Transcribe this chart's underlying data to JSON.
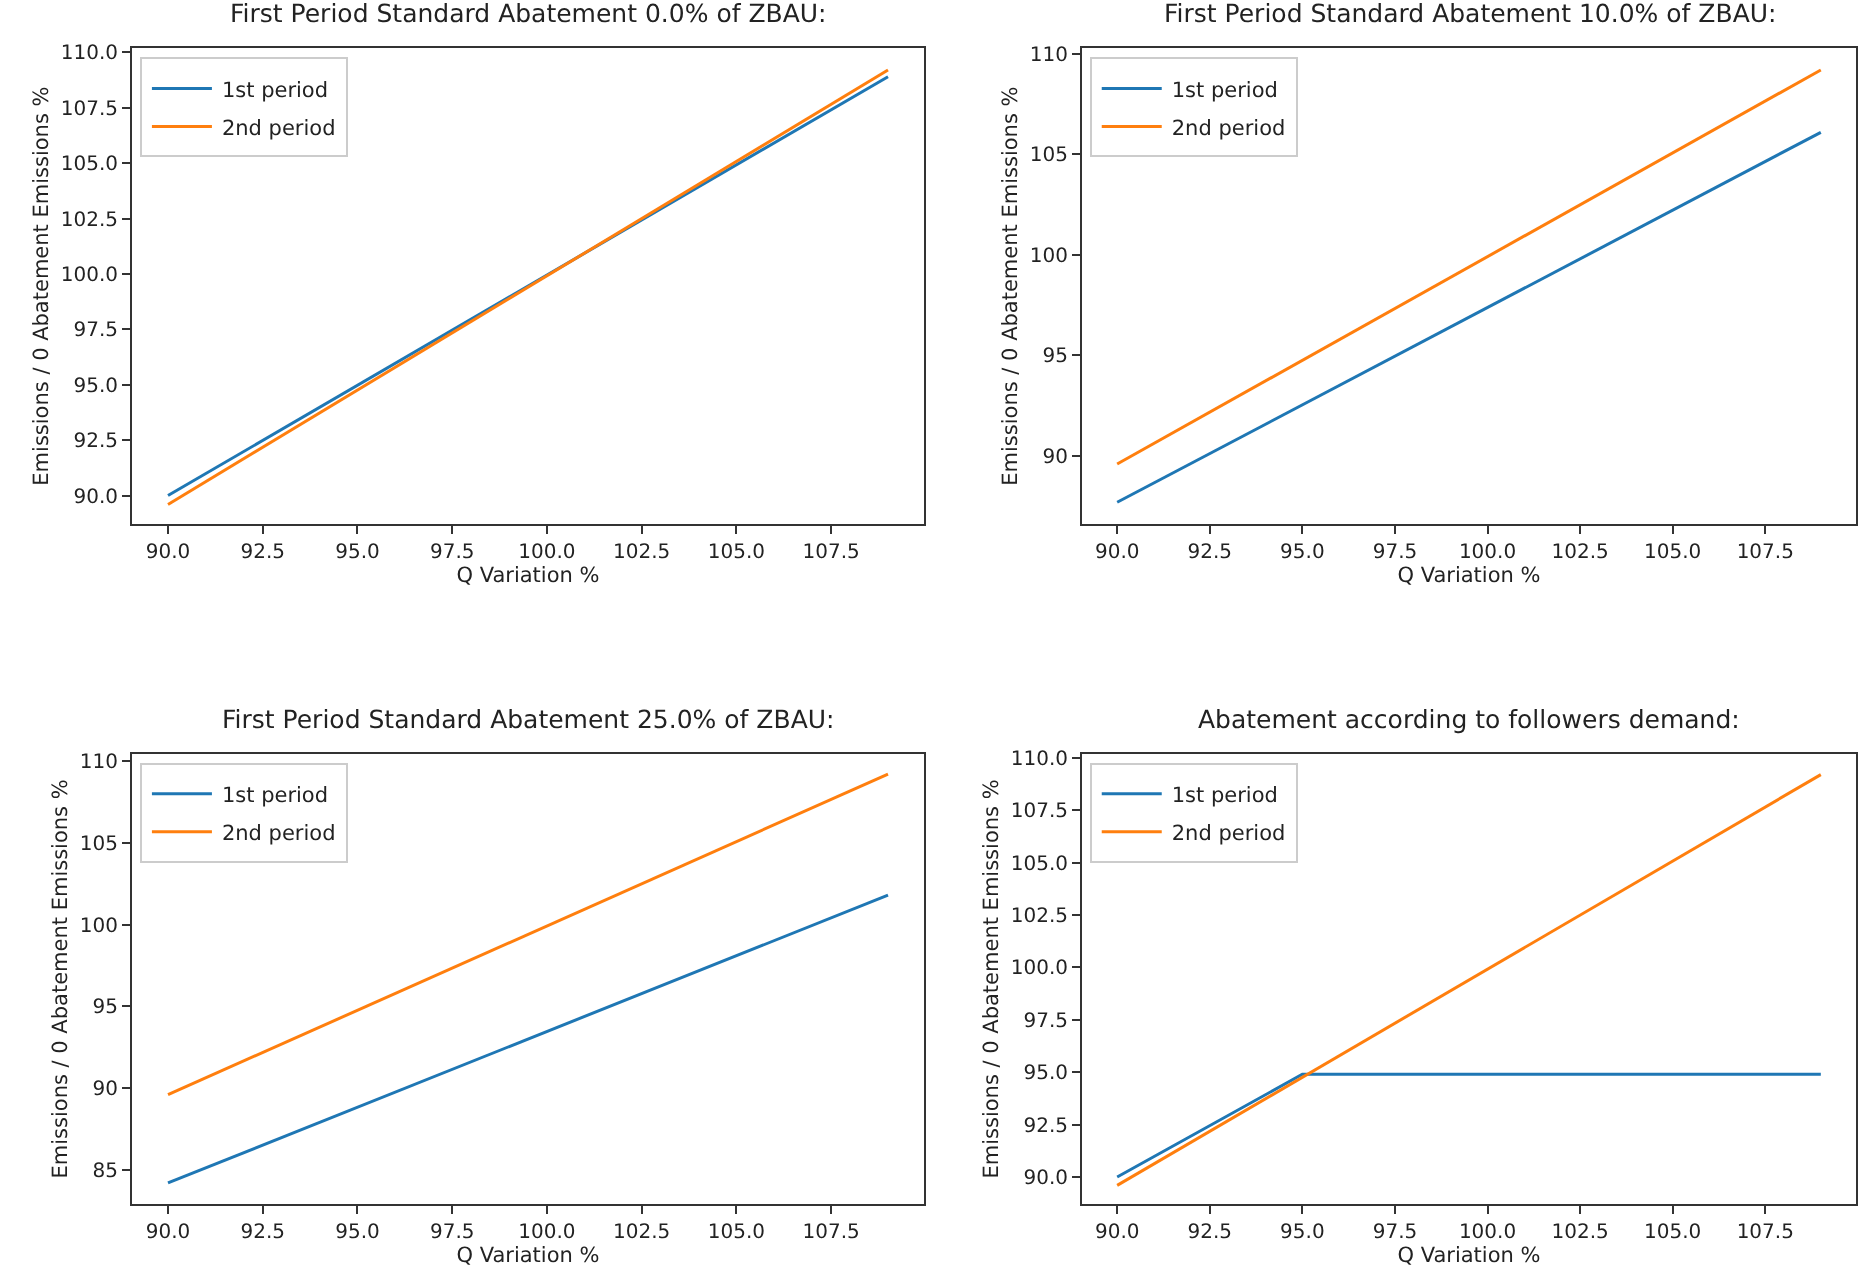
{
  "chart_data": [
    {
      "type": "line",
      "title": "First Period Standard Abatement 0.0% of ZBAU:",
      "xlabel": "Q Variation %",
      "ylabel": "Emissions / 0 Abatement Emissions %",
      "legend": "top left",
      "series": [
        {
          "name": "1st period",
          "color": "#1f77b4",
          "x": [
            90,
            109
          ],
          "values": [
            90.0,
            108.9
          ]
        },
        {
          "name": "2nd period",
          "color": "#ff7f0e",
          "x": [
            90,
            109
          ],
          "values": [
            89.6,
            109.2
          ]
        }
      ],
      "xlim": [
        89.05,
        109.95
      ],
      "ylim": [
        88.7,
        110.2
      ],
      "xticks": [
        {
          "value": 90,
          "label": "90.0"
        },
        {
          "value": 92.5,
          "label": "92.5"
        },
        {
          "value": 95,
          "label": "95.0"
        },
        {
          "value": 97.5,
          "label": "97.5"
        },
        {
          "value": 100,
          "label": "100.0"
        },
        {
          "value": 102.5,
          "label": "102.5"
        },
        {
          "value": 105,
          "label": "105.0"
        },
        {
          "value": 107.5,
          "label": "107.5"
        }
      ],
      "yticks": [
        {
          "value": 90,
          "label": "90.0"
        },
        {
          "value": 92.5,
          "label": "92.5"
        },
        {
          "value": 95,
          "label": "95.0"
        },
        {
          "value": 97.5,
          "label": "97.5"
        },
        {
          "value": 100,
          "label": "100.0"
        },
        {
          "value": 102.5,
          "label": "102.5"
        },
        {
          "value": 105,
          "label": "105.0"
        },
        {
          "value": 107.5,
          "label": "107.5"
        },
        {
          "value": 110,
          "label": "110.0"
        }
      ]
    },
    {
      "type": "line",
      "title": "First Period Standard Abatement 10.0% of ZBAU:",
      "xlabel": "Q Variation %",
      "ylabel": "Emissions / 0 Abatement Emissions %",
      "legend": "top left",
      "series": [
        {
          "name": "1st period",
          "color": "#1f77b4",
          "x": [
            90,
            109
          ],
          "values": [
            87.7,
            106.1
          ]
        },
        {
          "name": "2nd period",
          "color": "#ff7f0e",
          "x": [
            90,
            109
          ],
          "values": [
            89.6,
            109.2
          ]
        }
      ],
      "xlim": [
        89.05,
        109.95
      ],
      "ylim": [
        86.6,
        110.3
      ],
      "xticks": [
        {
          "value": 90,
          "label": "90.0"
        },
        {
          "value": 92.5,
          "label": "92.5"
        },
        {
          "value": 95,
          "label": "95.0"
        },
        {
          "value": 97.5,
          "label": "97.5"
        },
        {
          "value": 100,
          "label": "100.0"
        },
        {
          "value": 102.5,
          "label": "102.5"
        },
        {
          "value": 105,
          "label": "105.0"
        },
        {
          "value": 107.5,
          "label": "107.5"
        }
      ],
      "yticks": [
        90,
        95,
        100,
        105,
        110
      ]
    },
    {
      "type": "line",
      "title": "First Period Standard Abatement 25.0% of ZBAU:",
      "xlabel": "Q Variation %",
      "ylabel": "Emissions / 0 Abatement Emissions %",
      "legend": "top left",
      "series": [
        {
          "name": "1st period",
          "color": "#1f77b4",
          "x": [
            90,
            109
          ],
          "values": [
            84.2,
            101.8
          ]
        },
        {
          "name": "2nd period",
          "color": "#ff7f0e",
          "x": [
            90,
            109
          ],
          "values": [
            89.6,
            109.2
          ]
        }
      ],
      "xlim": [
        89.05,
        109.95
      ],
      "ylim": [
        82.9,
        110.45
      ],
      "xticks": [
        {
          "value": 90,
          "label": "90.0"
        },
        {
          "value": 92.5,
          "label": "92.5"
        },
        {
          "value": 95,
          "label": "95.0"
        },
        {
          "value": 97.5,
          "label": "97.5"
        },
        {
          "value": 100,
          "label": "100.0"
        },
        {
          "value": 102.5,
          "label": "102.5"
        },
        {
          "value": 105,
          "label": "105.0"
        },
        {
          "value": 107.5,
          "label": "107.5"
        }
      ],
      "yticks": [
        85,
        90,
        95,
        100,
        105,
        110
      ]
    },
    {
      "type": "line",
      "title": "Abatement according to followers demand:",
      "xlabel": "Q Variation %",
      "ylabel": "Emissions / 0 Abatement Emissions %",
      "legend": "top left",
      "series": [
        {
          "name": "1st period",
          "color": "#1f77b4",
          "x": [
            90,
            95,
            109
          ],
          "values": [
            90.0,
            94.9,
            94.9
          ]
        },
        {
          "name": "2nd period",
          "color": "#ff7f0e",
          "x": [
            90,
            109
          ],
          "values": [
            89.6,
            109.2
          ]
        }
      ],
      "xlim": [
        89.05,
        109.95
      ],
      "ylim": [
        88.7,
        110.2
      ],
      "xticks": [
        {
          "value": 90,
          "label": "90.0"
        },
        {
          "value": 92.5,
          "label": "92.5"
        },
        {
          "value": 95,
          "label": "95.0"
        },
        {
          "value": 97.5,
          "label": "97.5"
        },
        {
          "value": 100,
          "label": "100.0"
        },
        {
          "value": 102.5,
          "label": "102.5"
        },
        {
          "value": 105,
          "label": "105.0"
        },
        {
          "value": 107.5,
          "label": "107.5"
        }
      ],
      "yticks": [
        {
          "value": 90,
          "label": "90.0"
        },
        {
          "value": 92.5,
          "label": "92.5"
        },
        {
          "value": 95,
          "label": "95.0"
        },
        {
          "value": 97.5,
          "label": "97.5"
        },
        {
          "value": 100,
          "label": "100.0"
        },
        {
          "value": 102.5,
          "label": "102.5"
        },
        {
          "value": 105,
          "label": "105.0"
        },
        {
          "value": 107.5,
          "label": "107.5"
        },
        {
          "value": 110,
          "label": "110.0"
        }
      ]
    }
  ]
}
